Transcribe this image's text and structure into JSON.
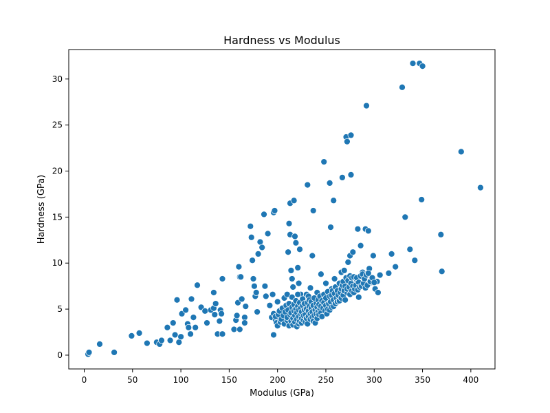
{
  "chart_data": {
    "type": "scatter",
    "title": "Hardness vs Modulus",
    "xlabel": "Modulus (GPa)",
    "ylabel": "Hardness (GPa)",
    "xlim": [
      -16,
      425
    ],
    "ylim": [
      -1.5,
      33.2
    ],
    "xticks": [
      0,
      50,
      100,
      150,
      200,
      250,
      300,
      350,
      400
    ],
    "yticks": [
      0,
      5,
      10,
      15,
      20,
      25,
      30
    ],
    "grid": false,
    "legend": "none",
    "point_color": "#1f77b4",
    "points": [
      [
        4,
        0.1
      ],
      [
        5,
        0.3
      ],
      [
        16,
        1.2
      ],
      [
        31,
        0.3
      ],
      [
        49,
        2.1
      ],
      [
        57,
        2.4
      ],
      [
        65,
        1.3
      ],
      [
        75,
        1.4
      ],
      [
        78,
        1.2
      ],
      [
        80,
        1.6
      ],
      [
        86,
        3.0
      ],
      [
        89,
        1.6
      ],
      [
        92,
        3.5
      ],
      [
        94,
        2.2
      ],
      [
        96,
        6.0
      ],
      [
        98,
        1.4
      ],
      [
        100,
        2.0
      ],
      [
        101,
        4.5
      ],
      [
        105,
        4.9
      ],
      [
        107,
        3.4
      ],
      [
        108,
        3.0
      ],
      [
        110,
        2.3
      ],
      [
        111,
        6.1
      ],
      [
        113,
        4.1
      ],
      [
        115,
        3.0
      ],
      [
        117,
        7.6
      ],
      [
        121,
        5.2
      ],
      [
        125,
        4.8
      ],
      [
        127,
        3.5
      ],
      [
        131,
        4.9
      ],
      [
        134,
        5.1
      ],
      [
        135,
        4.4
      ],
      [
        136,
        5.6
      ],
      [
        134,
        6.8
      ],
      [
        138,
        2.3
      ],
      [
        140,
        3.7
      ],
      [
        141,
        4.9
      ],
      [
        143,
        8.3
      ],
      [
        142,
        4.5
      ],
      [
        143,
        2.3
      ],
      [
        155,
        2.8
      ],
      [
        157,
        3.8
      ],
      [
        158,
        4.3
      ],
      [
        159,
        5.7
      ],
      [
        160,
        9.6
      ],
      [
        161,
        8.5
      ],
      [
        162,
        8.5
      ],
      [
        163,
        6.1
      ],
      [
        161,
        2.8
      ],
      [
        166,
        4.1
      ],
      [
        166,
        3.5
      ],
      [
        167,
        5.3
      ],
      [
        172,
        14.0
      ],
      [
        173,
        12.8
      ],
      [
        174,
        10.3
      ],
      [
        175,
        8.3
      ],
      [
        176,
        7.5
      ],
      [
        177,
        6.4
      ],
      [
        178,
        6.8
      ],
      [
        179,
        4.7
      ],
      [
        180,
        11.0
      ],
      [
        182,
        12.3
      ],
      [
        184,
        11.7
      ],
      [
        186,
        15.3
      ],
      [
        187,
        7.5
      ],
      [
        188,
        6.4
      ],
      [
        190,
        13.2
      ],
      [
        192,
        5.4
      ],
      [
        194,
        4.1
      ],
      [
        195,
        6.6
      ],
      [
        196,
        15.5
      ],
      [
        197,
        15.7
      ],
      [
        196,
        2.2
      ],
      [
        198,
        3.8
      ],
      [
        200,
        5.8
      ],
      [
        202,
        3.9
      ],
      [
        203,
        4.1
      ],
      [
        205,
        4.4
      ],
      [
        207,
        6.2
      ],
      [
        209,
        4.0
      ],
      [
        210,
        6.6
      ],
      [
        211,
        11.2
      ],
      [
        212,
        14.3
      ],
      [
        213,
        16.5
      ],
      [
        213,
        13.1
      ],
      [
        214,
        9.2
      ],
      [
        215,
        8.3
      ],
      [
        216,
        7.4
      ],
      [
        217,
        16.8
      ],
      [
        218,
        12.9
      ],
      [
        219,
        12.2
      ],
      [
        221,
        9.5
      ],
      [
        222,
        7.8
      ],
      [
        223,
        11.5
      ],
      [
        224,
        6.6
      ],
      [
        226,
        6.0
      ],
      [
        228,
        5.2
      ],
      [
        230,
        6.6
      ],
      [
        231,
        18.5
      ],
      [
        232,
        6.4
      ],
      [
        234,
        7.3
      ],
      [
        236,
        10.8
      ],
      [
        237,
        15.7
      ],
      [
        239,
        6.1
      ],
      [
        241,
        6.8
      ],
      [
        243,
        5.9
      ],
      [
        245,
        8.8
      ],
      [
        246,
        6.3
      ],
      [
        248,
        21.0
      ],
      [
        250,
        7.8
      ],
      [
        252,
        5.6
      ],
      [
        254,
        18.7
      ],
      [
        255,
        13.9
      ],
      [
        256,
        7.2
      ],
      [
        258,
        16.8
      ],
      [
        259,
        8.3
      ],
      [
        260,
        7.3
      ],
      [
        262,
        6.0
      ],
      [
        264,
        6.6
      ],
      [
        266,
        9.0
      ],
      [
        267,
        19.3
      ],
      [
        269,
        9.2
      ],
      [
        271,
        23.7
      ],
      [
        272,
        23.2
      ],
      [
        273,
        10.1
      ],
      [
        275,
        10.8
      ],
      [
        276,
        19.6
      ],
      [
        276,
        23.9
      ],
      [
        278,
        11.2
      ],
      [
        280,
        7.3
      ],
      [
        282,
        8.2
      ],
      [
        283,
        13.7
      ],
      [
        284,
        6.3
      ],
      [
        286,
        11.9
      ],
      [
        288,
        9.0
      ],
      [
        290,
        8.5
      ],
      [
        291,
        13.7
      ],
      [
        292,
        27.1
      ],
      [
        294,
        13.5
      ],
      [
        295,
        9.4
      ],
      [
        297,
        7.9
      ],
      [
        299,
        10.8
      ],
      [
        301,
        7.2
      ],
      [
        303,
        8.0
      ],
      [
        304,
        6.8
      ],
      [
        306,
        8.7
      ],
      [
        315,
        8.9
      ],
      [
        318,
        11.0
      ],
      [
        322,
        9.6
      ],
      [
        329,
        29.1
      ],
      [
        332,
        15.0
      ],
      [
        337,
        11.5
      ],
      [
        340,
        31.7
      ],
      [
        342,
        10.3
      ],
      [
        347,
        31.7
      ],
      [
        349,
        16.9
      ],
      [
        350,
        31.4
      ],
      [
        369,
        13.1
      ],
      [
        370,
        9.1
      ],
      [
        390,
        22.1
      ],
      [
        410,
        18.2
      ],
      [
        196,
        4.5
      ],
      [
        198,
        4.2
      ],
      [
        199,
        3.5
      ],
      [
        200,
        3.2
      ],
      [
        201,
        4.4
      ],
      [
        202,
        4.8
      ],
      [
        203,
        3.6
      ],
      [
        204,
        3.9
      ],
      [
        205,
        5.1
      ],
      [
        206,
        4.3
      ],
      [
        207,
        3.4
      ],
      [
        208,
        4.7
      ],
      [
        209,
        5.4
      ],
      [
        210,
        3.8
      ],
      [
        210,
        4.1
      ],
      [
        211,
        4.9
      ],
      [
        212,
        3.2
      ],
      [
        212,
        5.6
      ],
      [
        213,
        4.4
      ],
      [
        214,
        3.7
      ],
      [
        214,
        4.6
      ],
      [
        215,
        5.2
      ],
      [
        215,
        6.3
      ],
      [
        216,
        3.3
      ],
      [
        216,
        4.0
      ],
      [
        217,
        4.8
      ],
      [
        217,
        5.5
      ],
      [
        218,
        3.6
      ],
      [
        218,
        4.3
      ],
      [
        219,
        5.0
      ],
      [
        219,
        5.9
      ],
      [
        220,
        3.1
      ],
      [
        220,
        3.9
      ],
      [
        220,
        4.6
      ],
      [
        221,
        5.3
      ],
      [
        221,
        6.6
      ],
      [
        222,
        3.4
      ],
      [
        222,
        4.2
      ],
      [
        222,
        4.9
      ],
      [
        223,
        5.7
      ],
      [
        223,
        3.7
      ],
      [
        224,
        4.5
      ],
      [
        224,
        5.1
      ],
      [
        225,
        3.5
      ],
      [
        225,
        4.0
      ],
      [
        225,
        4.7
      ],
      [
        226,
        5.4
      ],
      [
        226,
        6.1
      ],
      [
        227,
        3.8
      ],
      [
        227,
        4.3
      ],
      [
        228,
        4.9
      ],
      [
        228,
        5.6
      ],
      [
        229,
        3.6
      ],
      [
        229,
        4.4
      ],
      [
        230,
        4.0
      ],
      [
        230,
        5.0
      ],
      [
        231,
        5.7
      ],
      [
        231,
        3.4
      ],
      [
        232,
        4.2
      ],
      [
        232,
        4.8
      ],
      [
        233,
        5.3
      ],
      [
        233,
        6.0
      ],
      [
        234,
        3.9
      ],
      [
        234,
        4.5
      ],
      [
        235,
        5.1
      ],
      [
        235,
        5.8
      ],
      [
        236,
        4.1
      ],
      [
        236,
        4.7
      ],
      [
        237,
        3.7
      ],
      [
        237,
        5.4
      ],
      [
        238,
        4.3
      ],
      [
        238,
        6.2
      ],
      [
        239,
        4.9
      ],
      [
        239,
        3.5
      ],
      [
        240,
        4.5
      ],
      [
        240,
        5.6
      ],
      [
        241,
        4.0
      ],
      [
        241,
        5.2
      ],
      [
        242,
        4.7
      ],
      [
        242,
        6.0
      ],
      [
        243,
        4.4
      ],
      [
        243,
        5.5
      ],
      [
        244,
        5.0
      ],
      [
        244,
        6.4
      ],
      [
        245,
        4.6
      ],
      [
        245,
        5.3
      ],
      [
        246,
        5.9
      ],
      [
        246,
        4.2
      ],
      [
        247,
        5.1
      ],
      [
        248,
        5.7
      ],
      [
        248,
        6.6
      ],
      [
        249,
        4.8
      ],
      [
        250,
        5.4
      ],
      [
        250,
        6.2
      ],
      [
        251,
        4.5
      ],
      [
        252,
        5.0
      ],
      [
        252,
        6.9
      ],
      [
        253,
        5.6
      ],
      [
        254,
        6.4
      ],
      [
        254,
        4.9
      ],
      [
        255,
        5.8
      ],
      [
        256,
        6.5
      ],
      [
        256,
        5.2
      ],
      [
        257,
        7.0
      ],
      [
        258,
        6.0
      ],
      [
        258,
        5.3
      ],
      [
        259,
        6.7
      ],
      [
        260,
        5.6
      ],
      [
        260,
        7.4
      ],
      [
        261,
        6.2
      ],
      [
        262,
        5.8
      ],
      [
        262,
        7.0
      ],
      [
        263,
        6.5
      ],
      [
        264,
        7.8
      ],
      [
        264,
        5.9
      ],
      [
        265,
        6.8
      ],
      [
        266,
        7.2
      ],
      [
        266,
        6.2
      ],
      [
        267,
        7.6
      ],
      [
        268,
        6.5
      ],
      [
        268,
        8.0
      ],
      [
        269,
        7.0
      ],
      [
        270,
        6.0
      ],
      [
        270,
        7.5
      ],
      [
        271,
        8.4
      ],
      [
        272,
        6.8
      ],
      [
        272,
        7.2
      ],
      [
        273,
        8.1
      ],
      [
        274,
        7.4
      ],
      [
        275,
        6.6
      ],
      [
        275,
        8.6
      ],
      [
        276,
        7.8
      ],
      [
        277,
        7.0
      ],
      [
        277,
        8.4
      ],
      [
        278,
        7.5
      ],
      [
        279,
        6.8
      ],
      [
        279,
        8.5
      ],
      [
        280,
        7.2
      ],
      [
        281,
        7.6
      ],
      [
        282,
        8.4
      ],
      [
        283,
        7.1
      ],
      [
        284,
        7.9
      ],
      [
        285,
        7.4
      ],
      [
        286,
        8.6
      ],
      [
        287,
        7.5
      ],
      [
        288,
        8.8
      ],
      [
        289,
        7.8
      ],
      [
        290,
        8.3
      ],
      [
        291,
        7.3
      ],
      [
        292,
        8.7
      ],
      [
        293,
        7.6
      ],
      [
        294,
        8.9
      ],
      [
        296,
        8.0
      ],
      [
        298,
        8.4
      ],
      [
        300,
        7.9
      ]
    ]
  }
}
